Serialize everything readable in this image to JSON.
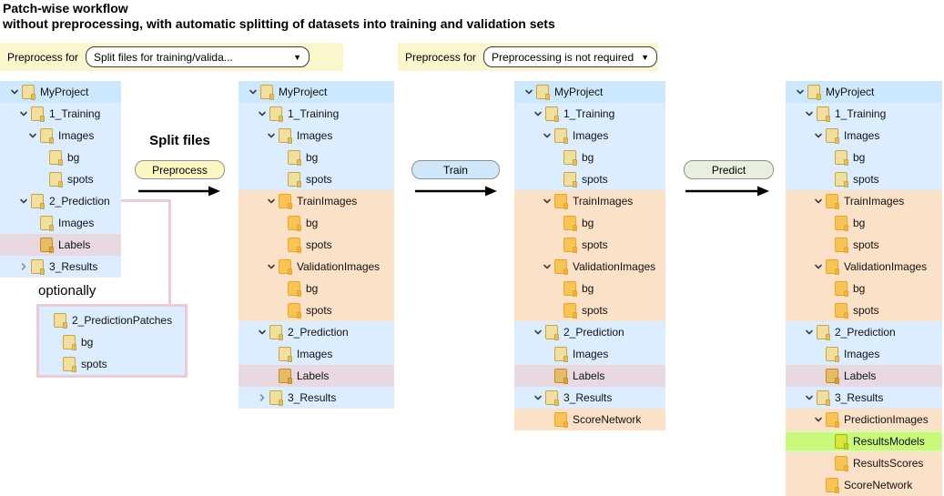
{
  "header": {
    "title_line1": "Patch-wise workflow",
    "title_line2": "without preprocessing, with automatic splitting of datasets into training and validation sets"
  },
  "toolbars": [
    {
      "label": "Preprocess for",
      "value": "Split files for training/valida...",
      "icon": "dropdown-arrow"
    },
    {
      "label": "Preprocess for",
      "value": "Preprocessing is not required",
      "icon": "dropdown-arrow"
    }
  ],
  "steps": [
    {
      "label": "Split files",
      "button": "Preprocess"
    },
    {
      "button": "Train"
    },
    {
      "button": "Predict"
    }
  ],
  "optional": {
    "label": "optionally"
  },
  "panels": [
    {
      "rows": [
        {
          "label": "MyProject",
          "indent": 0,
          "chevron": "down",
          "row": "selected",
          "folder": "khaki"
        },
        {
          "label": "1_Training",
          "indent": 1,
          "chevron": "down",
          "row": "blue",
          "folder": "khaki"
        },
        {
          "label": "Images",
          "indent": 2,
          "chevron": "down",
          "row": "blue",
          "folder": "khaki"
        },
        {
          "label": "bg",
          "indent": 3,
          "chevron": "none",
          "row": "blue",
          "folder": "khaki"
        },
        {
          "label": "spots",
          "indent": 3,
          "chevron": "none",
          "row": "blue",
          "folder": "khaki"
        },
        {
          "label": "2_Prediction",
          "indent": 1,
          "chevron": "down",
          "row": "blue",
          "folder": "khaki"
        },
        {
          "label": "Images",
          "indent": 2,
          "chevron": "none",
          "row": "blue",
          "folder": "khaki"
        },
        {
          "label": "Labels",
          "indent": 2,
          "chevron": "none",
          "row": "pink",
          "folder": "amber"
        },
        {
          "label": "3_Results",
          "indent": 1,
          "chevron": "right",
          "row": "blue",
          "folder": "khaki"
        }
      ]
    },
    {
      "rows": [
        {
          "label": "MyProject",
          "indent": 0,
          "chevron": "down",
          "row": "selected",
          "folder": "khaki"
        },
        {
          "label": "1_Training",
          "indent": 1,
          "chevron": "down",
          "row": "blue",
          "folder": "khaki"
        },
        {
          "label": "Images",
          "indent": 2,
          "chevron": "down",
          "row": "blue",
          "folder": "khaki"
        },
        {
          "label": "bg",
          "indent": 3,
          "chevron": "none",
          "row": "blue",
          "folder": "khaki"
        },
        {
          "label": "spots",
          "indent": 3,
          "chevron": "none",
          "row": "blue",
          "folder": "khaki"
        },
        {
          "label": "TrainImages",
          "indent": 2,
          "chevron": "down",
          "row": "orange",
          "folder": "orange"
        },
        {
          "label": "bg",
          "indent": 3,
          "chevron": "none",
          "row": "orange",
          "folder": "orange"
        },
        {
          "label": "spots",
          "indent": 3,
          "chevron": "none",
          "row": "orange",
          "folder": "orange"
        },
        {
          "label": "ValidationImages",
          "indent": 2,
          "chevron": "down",
          "row": "orange",
          "folder": "orange"
        },
        {
          "label": "bg",
          "indent": 3,
          "chevron": "none",
          "row": "orange",
          "folder": "orange"
        },
        {
          "label": "spots",
          "indent": 3,
          "chevron": "none",
          "row": "orange",
          "folder": "orange"
        },
        {
          "label": "2_Prediction",
          "indent": 1,
          "chevron": "down",
          "row": "blue",
          "folder": "khaki"
        },
        {
          "label": "Images",
          "indent": 2,
          "chevron": "none",
          "row": "blue",
          "folder": "khaki"
        },
        {
          "label": "Labels",
          "indent": 2,
          "chevron": "none",
          "row": "pink",
          "folder": "amber"
        },
        {
          "label": "3_Results",
          "indent": 1,
          "chevron": "right",
          "row": "blue",
          "folder": "khaki"
        }
      ]
    },
    {
      "rows": [
        {
          "label": "MyProject",
          "indent": 0,
          "chevron": "down",
          "row": "selected",
          "folder": "khaki"
        },
        {
          "label": "1_Training",
          "indent": 1,
          "chevron": "down",
          "row": "blue",
          "folder": "khaki"
        },
        {
          "label": "Images",
          "indent": 2,
          "chevron": "down",
          "row": "blue",
          "folder": "khaki"
        },
        {
          "label": "bg",
          "indent": 3,
          "chevron": "none",
          "row": "blue",
          "folder": "khaki"
        },
        {
          "label": "spots",
          "indent": 3,
          "chevron": "none",
          "row": "blue",
          "folder": "khaki"
        },
        {
          "label": "TrainImages",
          "indent": 2,
          "chevron": "down",
          "row": "orange",
          "folder": "orange"
        },
        {
          "label": "bg",
          "indent": 3,
          "chevron": "none",
          "row": "orange",
          "folder": "orange"
        },
        {
          "label": "spots",
          "indent": 3,
          "chevron": "none",
          "row": "orange",
          "folder": "orange"
        },
        {
          "label": "ValidationImages",
          "indent": 2,
          "chevron": "down",
          "row": "orange",
          "folder": "orange"
        },
        {
          "label": "bg",
          "indent": 3,
          "chevron": "none",
          "row": "orange",
          "folder": "orange"
        },
        {
          "label": "spots",
          "indent": 3,
          "chevron": "none",
          "row": "orange",
          "folder": "orange"
        },
        {
          "label": "2_Prediction",
          "indent": 1,
          "chevron": "down",
          "row": "blue",
          "folder": "khaki"
        },
        {
          "label": "Images",
          "indent": 2,
          "chevron": "none",
          "row": "blue",
          "folder": "khaki"
        },
        {
          "label": "Labels",
          "indent": 2,
          "chevron": "none",
          "row": "pink",
          "folder": "amber"
        },
        {
          "label": "3_Results",
          "indent": 1,
          "chevron": "down",
          "row": "blue",
          "folder": "khaki"
        },
        {
          "label": "ScoreNetwork",
          "indent": 2,
          "chevron": "none",
          "row": "orange",
          "folder": "orange"
        }
      ]
    },
    {
      "rows": [
        {
          "label": "MyProject",
          "indent": 0,
          "chevron": "down",
          "row": "selected",
          "folder": "khaki"
        },
        {
          "label": "1_Training",
          "indent": 1,
          "chevron": "down",
          "row": "blue",
          "folder": "khaki"
        },
        {
          "label": "Images",
          "indent": 2,
          "chevron": "down",
          "row": "blue",
          "folder": "khaki"
        },
        {
          "label": "bg",
          "indent": 3,
          "chevron": "none",
          "row": "blue",
          "folder": "khaki"
        },
        {
          "label": "spots",
          "indent": 3,
          "chevron": "none",
          "row": "blue",
          "folder": "khaki"
        },
        {
          "label": "TrainImages",
          "indent": 2,
          "chevron": "down",
          "row": "orange",
          "folder": "orange"
        },
        {
          "label": "bg",
          "indent": 3,
          "chevron": "none",
          "row": "orange",
          "folder": "orange"
        },
        {
          "label": "spots",
          "indent": 3,
          "chevron": "none",
          "row": "orange",
          "folder": "orange"
        },
        {
          "label": "ValidationImages",
          "indent": 2,
          "chevron": "down",
          "row": "orange",
          "folder": "orange"
        },
        {
          "label": "bg",
          "indent": 3,
          "chevron": "none",
          "row": "orange",
          "folder": "orange"
        },
        {
          "label": "spots",
          "indent": 3,
          "chevron": "none",
          "row": "orange",
          "folder": "orange"
        },
        {
          "label": "2_Prediction",
          "indent": 1,
          "chevron": "down",
          "row": "blue",
          "folder": "khaki"
        },
        {
          "label": "Images",
          "indent": 2,
          "chevron": "none",
          "row": "blue",
          "folder": "khaki"
        },
        {
          "label": "Labels",
          "indent": 2,
          "chevron": "none",
          "row": "pink",
          "folder": "amber"
        },
        {
          "label": "3_Results",
          "indent": 1,
          "chevron": "down",
          "row": "blue",
          "folder": "khaki"
        },
        {
          "label": "PredictionImages",
          "indent": 2,
          "chevron": "down",
          "row": "orange",
          "folder": "orange"
        },
        {
          "label": "ResultsModels",
          "indent": 3,
          "chevron": "none",
          "row": "green",
          "folder": "green"
        },
        {
          "label": "ResultsScores",
          "indent": 3,
          "chevron": "none",
          "row": "orange",
          "folder": "orange"
        },
        {
          "label": "ScoreNetwork",
          "indent": 2,
          "chevron": "none",
          "row": "orange",
          "folder": "orange"
        }
      ]
    }
  ],
  "optional_box": {
    "rows": [
      {
        "label": "2_PredictionPatches",
        "indent": 0,
        "chevron": "none",
        "row": "none",
        "folder": "khaki"
      },
      {
        "label": "bg",
        "indent": 1,
        "chevron": "none",
        "row": "none",
        "folder": "khaki"
      },
      {
        "label": "spots",
        "indent": 1,
        "chevron": "none",
        "row": "none",
        "folder": "khaki"
      }
    ]
  },
  "colors": {
    "toolbar_bg": "#fbf6ce",
    "row_bg": {
      "blue": "#dcedff",
      "selected": "#cce8ff",
      "orange": "#fce1c9",
      "pink": "#e8d8e0",
      "green": "#c8f87c",
      "none": "transparent"
    },
    "green_stripe": "#e2f8b6",
    "folder": {
      "khaki": {
        "fill": "#f1df9f",
        "border": "#c9a63d",
        "tab": "#ddc065"
      },
      "orange": {
        "fill": "#f8c455",
        "border": "#e9a52b",
        "tab": "#eeb13a"
      },
      "amber": {
        "fill": "#e6bc69",
        "border": "#c28b20",
        "tab": "#d5a33f"
      },
      "green": {
        "fill": "#d8e637",
        "border": "#a3b512",
        "tab": "#c3d01f"
      }
    },
    "chevron": {
      "down": "#3f3f3f",
      "right": "#8f8f8f"
    },
    "connector": "#eccbd8",
    "buttons": {
      "preprocess": "#fdf6c3",
      "train": "#cfe7f8",
      "predict": "#e7f0de"
    },
    "arrow": "#000000"
  }
}
